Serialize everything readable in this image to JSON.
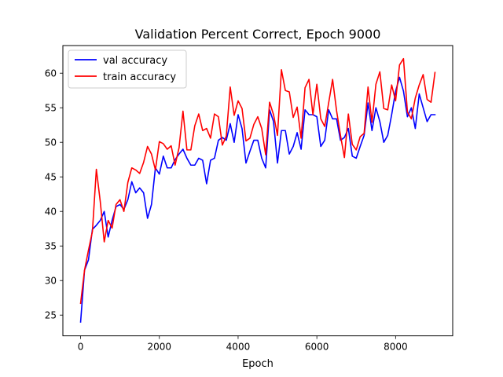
{
  "chart_data": {
    "type": "line",
    "title": "Validation Percent Correct, Epoch 9000",
    "xlabel": "Epoch",
    "ylabel": "",
    "xlim": [
      -450,
      9450
    ],
    "ylim": [
      22,
      64
    ],
    "xticks": [
      0,
      2000,
      4000,
      6000,
      8000
    ],
    "yticks": [
      25,
      30,
      35,
      40,
      45,
      50,
      55,
      60
    ],
    "grid": false,
    "legend_position": "top-left",
    "x": [
      0,
      100,
      200,
      300,
      400,
      500,
      600,
      700,
      800,
      900,
      1000,
      1100,
      1200,
      1300,
      1400,
      1500,
      1600,
      1700,
      1800,
      1900,
      2000,
      2100,
      2200,
      2300,
      2400,
      2500,
      2600,
      2700,
      2800,
      2900,
      3000,
      3100,
      3200,
      3300,
      3400,
      3500,
      3600,
      3700,
      3800,
      3900,
      4000,
      4100,
      4200,
      4300,
      4400,
      4500,
      4600,
      4700,
      4800,
      4900,
      5000,
      5100,
      5200,
      5300,
      5400,
      5500,
      5600,
      5700,
      5800,
      5900,
      6000,
      6100,
      6200,
      6300,
      6400,
      6500,
      6600,
      6700,
      6800,
      6900,
      7000,
      7100,
      7200,
      7300,
      7400,
      7500,
      7600,
      7700,
      7800,
      7900,
      8000,
      8100,
      8200,
      8300,
      8400,
      8500,
      8600,
      8700,
      8800,
      8900,
      9000
    ],
    "series": [
      {
        "name": "val accuracy",
        "color": "#0000ff",
        "values": [
          24.0,
          31.5,
          33.0,
          37.4,
          38.0,
          38.7,
          40.0,
          36.3,
          38.7,
          40.7,
          41.0,
          40.3,
          41.7,
          44.3,
          42.7,
          43.4,
          42.7,
          39.0,
          41.0,
          46.3,
          45.4,
          48.0,
          46.3,
          46.3,
          47.5,
          48.3,
          49.0,
          47.7,
          46.7,
          46.7,
          47.7,
          47.4,
          44.0,
          47.4,
          47.7,
          50.3,
          50.7,
          50.3,
          52.7,
          50.0,
          54.0,
          52.0,
          47.0,
          48.7,
          50.3,
          50.3,
          47.7,
          46.3,
          54.7,
          53.0,
          47.0,
          51.7,
          51.7,
          48.3,
          49.4,
          51.4,
          49.0,
          54.7,
          54.0,
          54.0,
          53.7,
          49.4,
          50.3,
          54.7,
          53.4,
          53.4,
          50.3,
          50.7,
          52.0,
          48.0,
          47.7,
          49.4,
          51.0,
          55.7,
          51.7,
          55.0,
          53.0,
          50.0,
          51.0,
          54.0,
          57.4,
          59.4,
          57.4,
          53.7,
          55.0,
          52.0,
          57.0,
          55.0,
          53.0,
          54.0,
          54.0
        ]
      },
      {
        "name": "train accuracy",
        "color": "#ff0000",
        "values": [
          26.7,
          31.5,
          34.4,
          37.1,
          46.1,
          41.4,
          35.6,
          38.7,
          37.6,
          41.0,
          41.7,
          40.0,
          44.2,
          46.3,
          46.0,
          45.5,
          47.1,
          49.4,
          48.3,
          46.0,
          50.1,
          49.8,
          49.0,
          49.5,
          46.7,
          49.2,
          54.5,
          48.9,
          48.9,
          52.4,
          54.1,
          51.7,
          52.0,
          50.6,
          54.1,
          53.7,
          49.6,
          50.9,
          58.0,
          53.9,
          56.0,
          54.9,
          50.2,
          50.6,
          52.6,
          53.7,
          52.0,
          48.2,
          55.8,
          54.0,
          51.0,
          60.5,
          57.5,
          57.3,
          53.6,
          55.1,
          50.6,
          57.9,
          59.1,
          54.0,
          58.4,
          53.4,
          52.3,
          55.7,
          59.1,
          54.6,
          51.0,
          47.8,
          54.1,
          49.7,
          48.9,
          50.8,
          51.3,
          58.0,
          52.9,
          58.4,
          60.2,
          54.9,
          54.7,
          58.3,
          56.0,
          61.2,
          62.1,
          54.4,
          53.4,
          56.4,
          58.3,
          59.8,
          56.2,
          55.8,
          60.1
        ]
      }
    ]
  }
}
